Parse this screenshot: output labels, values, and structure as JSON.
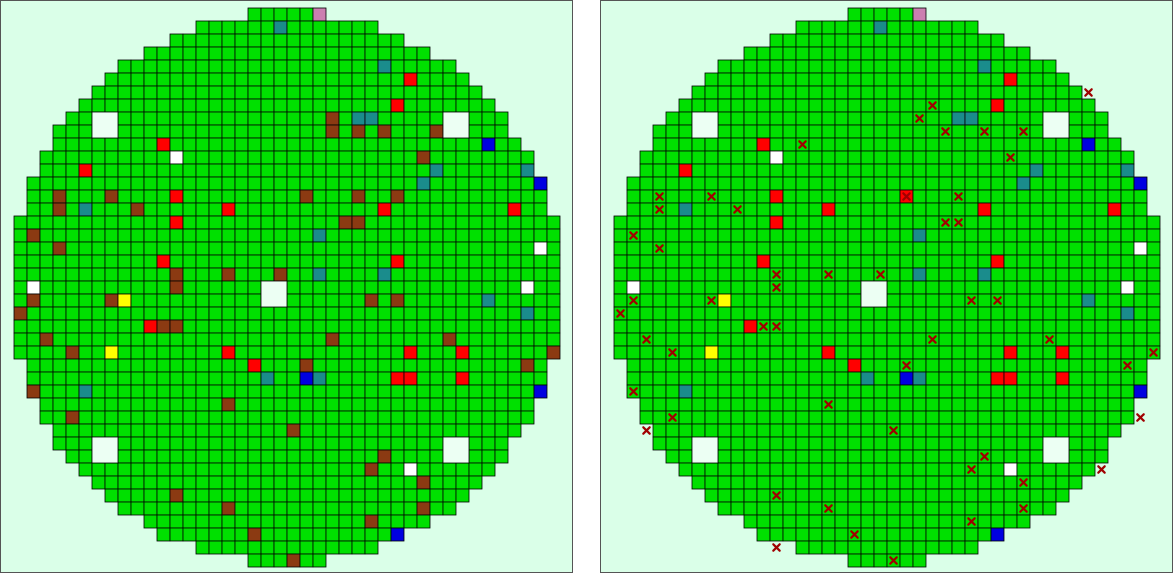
{
  "wafer_maps": [
    {
      "id": "left",
      "show_markers": false,
      "cells": {
        "red": [
          [
            26,
            0
          ],
          [
            31,
            5
          ],
          [
            30,
            7
          ],
          [
            12,
            10
          ],
          [
            6,
            12
          ],
          [
            13,
            14
          ],
          [
            23,
            14
          ],
          [
            17,
            15
          ],
          [
            39,
            15
          ],
          [
            13,
            16
          ],
          [
            29,
            15
          ],
          [
            12,
            19
          ],
          [
            30,
            19
          ],
          [
            11,
            24
          ],
          [
            17,
            26
          ],
          [
            19,
            27
          ],
          [
            31,
            26
          ],
          [
            35,
            26
          ],
          [
            30,
            28
          ],
          [
            35,
            28
          ],
          [
            31,
            28
          ],
          [
            15,
            43
          ],
          [
            23,
            43
          ]
        ],
        "brown": [
          [
            37,
            6
          ],
          [
            25,
            8
          ],
          [
            25,
            9
          ],
          [
            27,
            9
          ],
          [
            29,
            9
          ],
          [
            33,
            9
          ],
          [
            32,
            11
          ],
          [
            30,
            14
          ],
          [
            4,
            14
          ],
          [
            4,
            15
          ],
          [
            8,
            14
          ],
          [
            10,
            15
          ],
          [
            23,
            14
          ],
          [
            27,
            14
          ],
          [
            26,
            16
          ],
          [
            27,
            16
          ],
          [
            2,
            17
          ],
          [
            4,
            18
          ],
          [
            13,
            20
          ],
          [
            17,
            20
          ],
          [
            21,
            20
          ],
          [
            13,
            21
          ],
          [
            2,
            22
          ],
          [
            8,
            22
          ],
          [
            28,
            22
          ],
          [
            30,
            22
          ],
          [
            1,
            23
          ],
          [
            12,
            24
          ],
          [
            13,
            24
          ],
          [
            3,
            25
          ],
          [
            25,
            25
          ],
          [
            34,
            25
          ],
          [
            5,
            26
          ],
          [
            42,
            26
          ],
          [
            23,
            27
          ],
          [
            40,
            27
          ],
          [
            2,
            29
          ],
          [
            17,
            30
          ],
          [
            5,
            31
          ],
          [
            22,
            32
          ],
          [
            3,
            33
          ],
          [
            41,
            32
          ],
          [
            29,
            34
          ],
          [
            28,
            35
          ],
          [
            32,
            36
          ],
          [
            38,
            35
          ],
          [
            13,
            37
          ],
          [
            17,
            38
          ],
          [
            32,
            38
          ],
          [
            28,
            39
          ],
          [
            19,
            40
          ],
          [
            13,
            41
          ],
          [
            22,
            42
          ]
        ],
        "teal": [
          [
            21,
            1
          ],
          [
            29,
            4
          ],
          [
            27,
            8
          ],
          [
            28,
            8
          ],
          [
            33,
            12
          ],
          [
            32,
            13
          ],
          [
            40,
            12
          ],
          [
            6,
            15
          ],
          [
            24,
            17
          ],
          [
            24,
            20
          ],
          [
            29,
            20
          ],
          [
            37,
            22
          ],
          [
            40,
            23
          ],
          [
            6,
            29
          ],
          [
            20,
            28
          ],
          [
            24,
            28
          ]
        ],
        "blue": [
          [
            37,
            10
          ],
          [
            41,
            13
          ],
          [
            23,
            28
          ],
          [
            41,
            29
          ],
          [
            30,
            40
          ]
        ],
        "yellow": [
          [
            9,
            3
          ],
          [
            9,
            22
          ],
          [
            8,
            26
          ]
        ],
        "pink": [
          [
            24,
            0
          ],
          [
            27,
            0
          ],
          [
            40,
            10
          ],
          [
            1,
            12
          ],
          [
            0,
            30
          ],
          [
            41,
            31
          ],
          [
            2,
            32
          ],
          [
            40,
            32
          ],
          [
            15,
            42
          ]
        ],
        "white_single": [
          [
            13,
            11
          ],
          [
            31,
            35
          ],
          [
            41,
            18
          ],
          [
            2,
            21
          ],
          [
            40,
            21
          ]
        ],
        "white_blocks": [
          [
            7,
            8
          ],
          [
            34,
            8
          ],
          [
            20,
            21
          ],
          [
            7,
            33
          ],
          [
            34,
            33
          ]
        ]
      },
      "markers": []
    },
    {
      "id": "right",
      "show_markers": true,
      "cells": {
        "red": [
          [
            26,
            0
          ],
          [
            31,
            5
          ],
          [
            30,
            7
          ],
          [
            12,
            10
          ],
          [
            6,
            12
          ],
          [
            13,
            14
          ],
          [
            23,
            14
          ],
          [
            17,
            15
          ],
          [
            39,
            15
          ],
          [
            13,
            16
          ],
          [
            29,
            15
          ],
          [
            12,
            19
          ],
          [
            30,
            19
          ],
          [
            11,
            24
          ],
          [
            17,
            26
          ],
          [
            19,
            27
          ],
          [
            31,
            26
          ],
          [
            35,
            26
          ],
          [
            30,
            28
          ],
          [
            35,
            28
          ],
          [
            31,
            28
          ],
          [
            15,
            43
          ],
          [
            23,
            43
          ]
        ],
        "brown": [],
        "teal": [
          [
            21,
            1
          ],
          [
            29,
            4
          ],
          [
            27,
            8
          ],
          [
            28,
            8
          ],
          [
            33,
            12
          ],
          [
            32,
            13
          ],
          [
            40,
            12
          ],
          [
            6,
            15
          ],
          [
            24,
            17
          ],
          [
            24,
            20
          ],
          [
            29,
            20
          ],
          [
            37,
            22
          ],
          [
            40,
            23
          ],
          [
            6,
            29
          ],
          [
            20,
            28
          ],
          [
            24,
            28
          ]
        ],
        "blue": [
          [
            37,
            10
          ],
          [
            41,
            13
          ],
          [
            23,
            28
          ],
          [
            41,
            29
          ],
          [
            30,
            40
          ]
        ],
        "yellow": [
          [
            9,
            3
          ],
          [
            9,
            22
          ],
          [
            8,
            26
          ]
        ],
        "pink": [
          [
            24,
            0
          ],
          [
            27,
            0
          ],
          [
            40,
            10
          ],
          [
            1,
            12
          ],
          [
            0,
            30
          ],
          [
            41,
            31
          ],
          [
            2,
            32
          ],
          [
            40,
            32
          ],
          [
            15,
            42
          ]
        ],
        "white_single": [
          [
            13,
            11
          ],
          [
            31,
            35
          ],
          [
            41,
            18
          ],
          [
            2,
            21
          ],
          [
            40,
            21
          ]
        ],
        "white_blocks": [
          [
            7,
            8
          ],
          [
            34,
            8
          ],
          [
            20,
            21
          ],
          [
            7,
            33
          ],
          [
            34,
            33
          ]
        ]
      },
      "markers": [
        [
          37,
          6
        ],
        [
          25,
          7
        ],
        [
          24,
          8
        ],
        [
          26,
          9
        ],
        [
          29,
          9
        ],
        [
          32,
          9
        ],
        [
          15,
          10
        ],
        [
          31,
          11
        ],
        [
          4,
          14
        ],
        [
          8,
          14
        ],
        [
          23,
          14
        ],
        [
          27,
          14
        ],
        [
          4,
          15
        ],
        [
          10,
          15
        ],
        [
          26,
          16
        ],
        [
          27,
          16
        ],
        [
          2,
          17
        ],
        [
          4,
          18
        ],
        [
          13,
          20
        ],
        [
          17,
          20
        ],
        [
          21,
          20
        ],
        [
          13,
          21
        ],
        [
          2,
          22
        ],
        [
          8,
          22
        ],
        [
          28,
          22
        ],
        [
          30,
          22
        ],
        [
          1,
          23
        ],
        [
          12,
          24
        ],
        [
          13,
          24
        ],
        [
          3,
          25
        ],
        [
          25,
          25
        ],
        [
          34,
          25
        ],
        [
          5,
          26
        ],
        [
          42,
          26
        ],
        [
          23,
          27
        ],
        [
          40,
          27
        ],
        [
          2,
          29
        ],
        [
          17,
          30
        ],
        [
          5,
          31
        ],
        [
          22,
          32
        ],
        [
          3,
          32
        ],
        [
          41,
          31
        ],
        [
          29,
          34
        ],
        [
          28,
          35
        ],
        [
          32,
          36
        ],
        [
          38,
          35
        ],
        [
          13,
          37
        ],
        [
          17,
          38
        ],
        [
          32,
          38
        ],
        [
          28,
          39
        ],
        [
          19,
          40
        ],
        [
          13,
          41
        ],
        [
          22,
          42
        ]
      ]
    }
  ],
  "colors": {
    "background": "#daffe8",
    "grid_line": "#000000",
    "normal": "#00e000",
    "red": "#ff0000",
    "brown": "#8b3a12",
    "teal": "#1a8c8c",
    "blue": "#0000e0",
    "yellow": "#ffff00",
    "pink": "#cc7fb0",
    "white": "#ffffff",
    "white_block": "#ecfff3",
    "marker": "#a00000"
  }
}
